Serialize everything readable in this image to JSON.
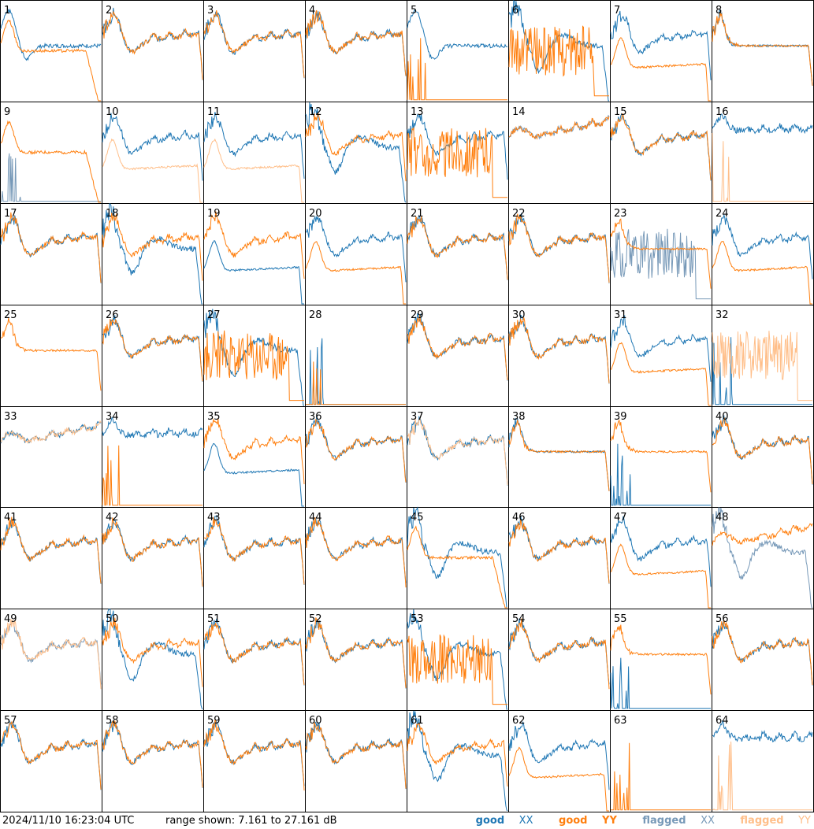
{
  "chart_data": {
    "type": "line",
    "grid": {
      "rows": 8,
      "cols": 8
    },
    "y_range_db": [
      7.161,
      27.161
    ],
    "tiles": [
      {
        "id": "1",
        "xx": "good",
        "yy": "good",
        "xx_shape": "early",
        "yy_shape": "rolloff"
      },
      {
        "id": "2",
        "xx": "good",
        "yy": "good",
        "xx_shape": "standard",
        "yy_shape": "standard"
      },
      {
        "id": "3",
        "xx": "good",
        "yy": "good",
        "xx_shape": "standard",
        "yy_shape": "standard"
      },
      {
        "id": "4",
        "xx": "good",
        "yy": "good",
        "xx_shape": "standard",
        "yy_shape": "standard"
      },
      {
        "id": "5",
        "xx": "good",
        "yy": "good",
        "xx_shape": "early",
        "yy_shape": "dead"
      },
      {
        "id": "6",
        "xx": "good",
        "yy": "good",
        "xx_shape": "droop",
        "yy_shape": "noisy"
      },
      {
        "id": "7",
        "xx": "good",
        "yy": "good",
        "xx_shape": "standard",
        "yy_shape": "lower"
      },
      {
        "id": "8",
        "xx": "good",
        "yy": "good",
        "xx_shape": "flat",
        "yy_shape": "flat"
      },
      {
        "id": "9",
        "xx": "flagged",
        "yy": "good",
        "xx_shape": "dead",
        "yy_shape": "rolloff"
      },
      {
        "id": "10",
        "xx": "good",
        "yy": "flagged",
        "xx_shape": "standard",
        "yy_shape": "lower"
      },
      {
        "id": "11",
        "xx": "good",
        "yy": "flagged",
        "xx_shape": "standard",
        "yy_shape": "lower"
      },
      {
        "id": "12",
        "xx": "good",
        "yy": "good",
        "xx_shape": "droop",
        "yy_shape": "standard"
      },
      {
        "id": "13",
        "xx": "good",
        "yy": "good",
        "xx_shape": "standard",
        "yy_shape": "noisy"
      },
      {
        "id": "14",
        "xx": "flagged",
        "yy": "good",
        "xx_shape": "rising",
        "yy_shape": "rising"
      },
      {
        "id": "15",
        "xx": "good",
        "yy": "good",
        "xx_shape": "standard",
        "yy_shape": "standard"
      },
      {
        "id": "16",
        "xx": "good",
        "yy": "flagged",
        "xx_shape": "high",
        "yy_shape": "dead"
      },
      {
        "id": "17",
        "xx": "good",
        "yy": "good",
        "xx_shape": "standard",
        "yy_shape": "standard"
      },
      {
        "id": "18",
        "xx": "good",
        "yy": "good",
        "xx_shape": "droop",
        "yy_shape": "standard"
      },
      {
        "id": "19",
        "xx": "good",
        "yy": "good",
        "xx_shape": "lower",
        "yy_shape": "standard"
      },
      {
        "id": "20",
        "xx": "good",
        "yy": "good",
        "xx_shape": "standard",
        "yy_shape": "lower"
      },
      {
        "id": "21",
        "xx": "good",
        "yy": "good",
        "xx_shape": "standard",
        "yy_shape": "standard"
      },
      {
        "id": "22",
        "xx": "good",
        "yy": "good",
        "xx_shape": "standard",
        "yy_shape": "standard"
      },
      {
        "id": "23",
        "xx": "flagged",
        "yy": "good",
        "xx_shape": "noisy",
        "yy_shape": "flat"
      },
      {
        "id": "24",
        "xx": "good",
        "yy": "good",
        "xx_shape": "standard",
        "yy_shape": "lower"
      },
      {
        "id": "25",
        "xx": "good",
        "yy": "good",
        "xx_shape": "none",
        "yy_shape": "flat"
      },
      {
        "id": "26",
        "xx": "good",
        "yy": "good",
        "xx_shape": "standard",
        "yy_shape": "standard"
      },
      {
        "id": "27",
        "xx": "good",
        "yy": "good",
        "xx_shape": "droop",
        "yy_shape": "noisy"
      },
      {
        "id": "28",
        "xx": "good",
        "yy": "good",
        "xx_shape": "dead",
        "yy_shape": "dead"
      },
      {
        "id": "29",
        "xx": "good",
        "yy": "good",
        "xx_shape": "standard",
        "yy_shape": "standard"
      },
      {
        "id": "30",
        "xx": "good",
        "yy": "good",
        "xx_shape": "standard",
        "yy_shape": "standard"
      },
      {
        "id": "31",
        "xx": "good",
        "yy": "good",
        "xx_shape": "standard",
        "yy_shape": "lower"
      },
      {
        "id": "32",
        "xx": "good",
        "yy": "flagged",
        "xx_shape": "dead",
        "yy_shape": "noisy"
      },
      {
        "id": "33",
        "xx": "good",
        "yy": "flagged",
        "xx_shape": "rising",
        "yy_shape": "rising"
      },
      {
        "id": "34",
        "xx": "good",
        "yy": "good",
        "xx_shape": "high",
        "yy_shape": "dead"
      },
      {
        "id": "35",
        "xx": "good",
        "yy": "good",
        "xx_shape": "lower",
        "yy_shape": "standard"
      },
      {
        "id": "36",
        "xx": "good",
        "yy": "good",
        "xx_shape": "standard",
        "yy_shape": "standard"
      },
      {
        "id": "37",
        "xx": "good",
        "yy": "flagged",
        "xx_shape": "standard",
        "yy_shape": "standard"
      },
      {
        "id": "38",
        "xx": "good",
        "yy": "good",
        "xx_shape": "flat",
        "yy_shape": "flat"
      },
      {
        "id": "39",
        "xx": "good",
        "yy": "good",
        "xx_shape": "dead",
        "yy_shape": "flat"
      },
      {
        "id": "40",
        "xx": "good",
        "yy": "good",
        "xx_shape": "standard",
        "yy_shape": "standard"
      },
      {
        "id": "41",
        "xx": "good",
        "yy": "good",
        "xx_shape": "standard",
        "yy_shape": "standard"
      },
      {
        "id": "42",
        "xx": "good",
        "yy": "good",
        "xx_shape": "standard",
        "yy_shape": "standard"
      },
      {
        "id": "43",
        "xx": "good",
        "yy": "good",
        "xx_shape": "standard",
        "yy_shape": "standard"
      },
      {
        "id": "44",
        "xx": "good",
        "yy": "good",
        "xx_shape": "standard",
        "yy_shape": "standard"
      },
      {
        "id": "45",
        "xx": "good",
        "yy": "good",
        "xx_shape": "droop",
        "yy_shape": "rolloff"
      },
      {
        "id": "46",
        "xx": "good",
        "yy": "good",
        "xx_shape": "standard",
        "yy_shape": "standard"
      },
      {
        "id": "47",
        "xx": "good",
        "yy": "good",
        "xx_shape": "standard",
        "yy_shape": "lower"
      },
      {
        "id": "48",
        "xx": "flagged",
        "yy": "good",
        "xx_shape": "droop",
        "yy_shape": "rising"
      },
      {
        "id": "49",
        "xx": "flagged",
        "yy": "flagged",
        "xx_shape": "standard",
        "yy_shape": "standard"
      },
      {
        "id": "50",
        "xx": "good",
        "yy": "good",
        "xx_shape": "droop",
        "yy_shape": "standard"
      },
      {
        "id": "51",
        "xx": "good",
        "yy": "good",
        "xx_shape": "standard",
        "yy_shape": "standard"
      },
      {
        "id": "52",
        "xx": "good",
        "yy": "good",
        "xx_shape": "standard",
        "yy_shape": "standard"
      },
      {
        "id": "53",
        "xx": "good",
        "yy": "good",
        "xx_shape": "droop",
        "yy_shape": "noisy"
      },
      {
        "id": "54",
        "xx": "good",
        "yy": "good",
        "xx_shape": "standard",
        "yy_shape": "standard"
      },
      {
        "id": "55",
        "xx": "good",
        "yy": "good",
        "xx_shape": "dead",
        "yy_shape": "flat"
      },
      {
        "id": "56",
        "xx": "good",
        "yy": "good",
        "xx_shape": "standard",
        "yy_shape": "standard"
      },
      {
        "id": "57",
        "xx": "good",
        "yy": "good",
        "xx_shape": "standard",
        "yy_shape": "standard"
      },
      {
        "id": "58",
        "xx": "good",
        "yy": "good",
        "xx_shape": "standard",
        "yy_shape": "standard"
      },
      {
        "id": "59",
        "xx": "good",
        "yy": "good",
        "xx_shape": "standard",
        "yy_shape": "standard"
      },
      {
        "id": "60",
        "xx": "good",
        "yy": "good",
        "xx_shape": "standard",
        "yy_shape": "standard"
      },
      {
        "id": "61",
        "xx": "good",
        "yy": "good",
        "xx_shape": "droop",
        "yy_shape": "standard"
      },
      {
        "id": "62",
        "xx": "good",
        "yy": "good",
        "xx_shape": "standard",
        "yy_shape": "lower"
      },
      {
        "id": "63",
        "xx": "good",
        "yy": "good",
        "xx_shape": "none",
        "yy_shape": "dead"
      },
      {
        "id": "64",
        "xx": "good",
        "yy": "flagged",
        "xx_shape": "high",
        "yy_shape": "dead"
      }
    ]
  },
  "footer": {
    "timestamp": "2024/11/10 16:23:04 UTC",
    "range_text": "range shown: 7.161 to 27.161 dB"
  },
  "legend": {
    "good_xx": {
      "word": "good",
      "pol": "XX",
      "color": "#1f77b4"
    },
    "good_yy": {
      "word": "good",
      "pol": "YY",
      "color": "#ff7f0e"
    },
    "flagged_xx": {
      "word": "flagged",
      "pol": "XX",
      "color": "#7799b8"
    },
    "flagged_yy": {
      "word": "flagged",
      "pol": "YY",
      "color": "#ffbf8a"
    }
  },
  "colors": {
    "good_xx": "#1f77b4",
    "good_yy": "#ff7f0e",
    "flagged_xx": "#7799b8",
    "flagged_yy": "#ffbf8a"
  }
}
